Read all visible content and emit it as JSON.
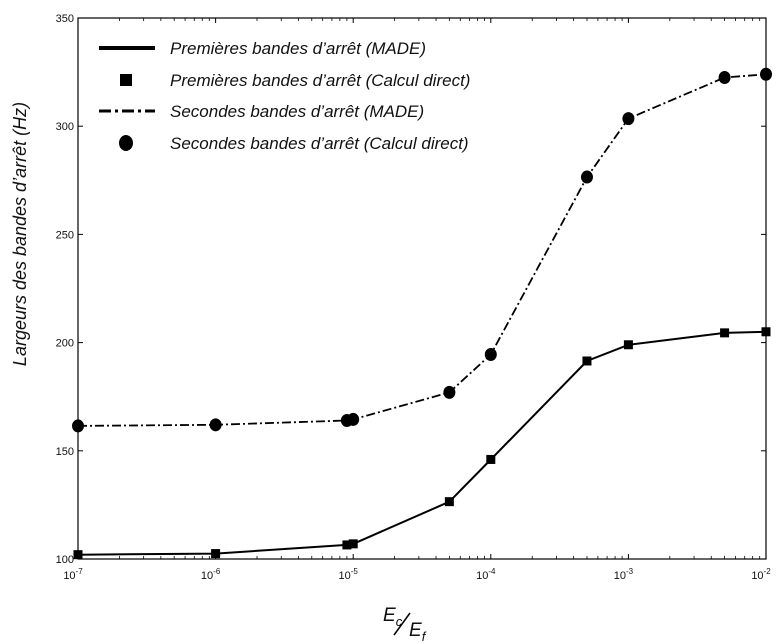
{
  "chart_data": {
    "type": "line",
    "xscale": "log",
    "xlim": [
      1e-07,
      0.01
    ],
    "ylim": [
      100,
      350
    ],
    "xticks": [
      {
        "value": 1e-07,
        "base": "10",
        "exp": "-7"
      },
      {
        "value": 1e-06,
        "base": "10",
        "exp": "-6"
      },
      {
        "value": 1e-05,
        "base": "10",
        "exp": "-5"
      },
      {
        "value": 0.0001,
        "base": "10",
        "exp": "-4"
      },
      {
        "value": 0.001,
        "base": "10",
        "exp": "-3"
      },
      {
        "value": 0.01,
        "base": "10",
        "exp": "-2"
      }
    ],
    "yticks": [
      "100",
      "150",
      "200",
      "250",
      "300",
      "350"
    ],
    "ylabel": "Largeurs des bandes d’arrêt (Hz)",
    "xlabel": {
      "num_main": "E",
      "num_sub": "c",
      "den_main": "E",
      "den_sub": "f"
    },
    "legend_position": "top-left",
    "grid": false,
    "series": [
      {
        "name": "Premières bandes d’arrêt (MADE)",
        "style": "solid",
        "color": "#000000",
        "x": [
          1e-07,
          1e-06,
          9e-06,
          1e-05,
          5e-05,
          0.0001,
          0.0005,
          0.001,
          0.005,
          0.01
        ],
        "y": [
          102,
          102.5,
          106.5,
          107,
          126.5,
          146,
          191.5,
          199,
          204.5,
          205
        ]
      },
      {
        "name": "Premières bandes d’arrêt (Calcul direct)",
        "marker": "square",
        "color": "#000000",
        "x": [
          1e-07,
          1e-06,
          9e-06,
          1e-05,
          5e-05,
          0.0001,
          0.0005,
          0.001,
          0.005,
          0.01
        ],
        "y": [
          102,
          102.5,
          106.5,
          107,
          126.5,
          146,
          191.5,
          199,
          204.5,
          205
        ]
      },
      {
        "name": "Secondes bandes d’arrêt (MADE)",
        "style": "dashdot",
        "color": "#000000",
        "x": [
          1e-07,
          1e-06,
          9e-06,
          1e-05,
          5e-05,
          0.0001,
          0.0005,
          0.001,
          0.005,
          0.01
        ],
        "y": [
          161.5,
          162,
          164,
          164.5,
          177,
          194.5,
          276.5,
          303.5,
          322.5,
          324
        ]
      },
      {
        "name": "Secondes bandes d’arrêt (Calcul direct)",
        "marker": "circle",
        "color": "#000000",
        "x": [
          1e-07,
          1e-06,
          9e-06,
          1e-05,
          5e-05,
          0.0001,
          0.0005,
          0.001,
          0.005,
          0.01
        ],
        "y": [
          161.5,
          162,
          164,
          164.5,
          177,
          194.5,
          276.5,
          303.5,
          322.5,
          324
        ]
      }
    ]
  }
}
